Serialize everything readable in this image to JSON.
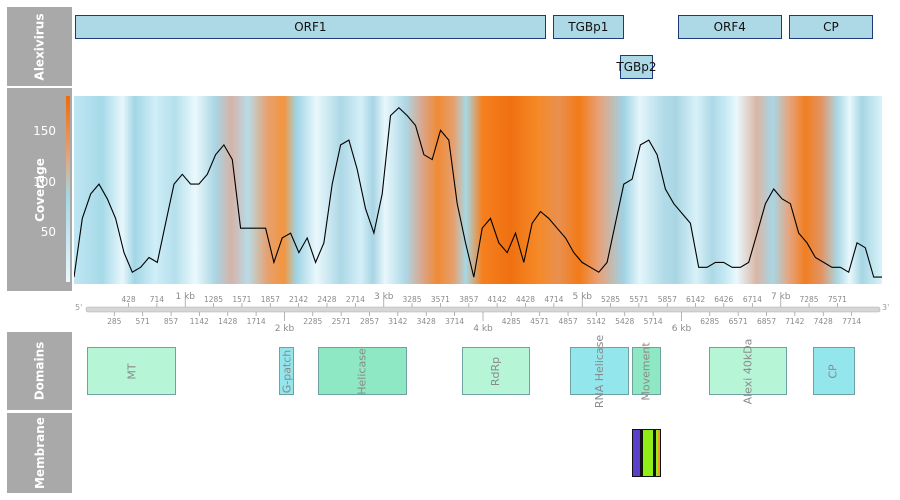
{
  "tracks": {
    "alexivirus_label": "Alexivirus",
    "coverage_label": "Coverage",
    "domains_label": "Domains",
    "membrane_label": "Membrane"
  },
  "genes": [
    {
      "name": "ORF1",
      "start": 10,
      "end": 5665
    },
    {
      "name": "TGBp1",
      "start": 5745,
      "end": 6605
    },
    {
      "name": "TGBp2",
      "start": 6555,
      "end": 6950
    },
    {
      "name": "ORF4",
      "start": 7245,
      "end": 8500
    },
    {
      "name": "CP",
      "start": 8580,
      "end": 9595
    }
  ],
  "coverage": {
    "yticks": [
      "50",
      "100",
      "150"
    ],
    "ymax": 190
  },
  "chart_data": {
    "type": "line",
    "title": "",
    "xlabel": "",
    "ylabel": "Coverage",
    "xlim": [
      0,
      9700
    ],
    "ylim": [
      0,
      190
    ],
    "series": [
      {
        "x": [
          0,
          100,
          200,
          300,
          400,
          500,
          600,
          700,
          800,
          900,
          1000,
          1100,
          1200,
          1300,
          1400,
          1500,
          1600,
          1700,
          1800,
          1900,
          2000,
          2100,
          2200,
          2300,
          2400,
          2500,
          2600,
          2700,
          2800,
          2900,
          3000,
          3100,
          3200,
          3300,
          3400,
          3500,
          3600,
          3700,
          3800,
          3900,
          4000,
          4100,
          4200,
          4300,
          4400,
          4500,
          4600,
          4700,
          4800,
          4900,
          5000,
          5100,
          5200,
          5300,
          5400,
          5500,
          5600,
          5700,
          5800,
          5900,
          6000,
          6100,
          6200,
          6300,
          6400,
          6500,
          6600,
          6700,
          6800,
          6900,
          7000,
          7100,
          7200,
          7300,
          7400,
          7500,
          7600,
          7700,
          7800,
          7900,
          8000,
          8100,
          8200,
          8300,
          8400,
          8500,
          8600,
          8700,
          8800,
          8900,
          9000,
          9100,
          9200,
          9300,
          9400,
          9500,
          9600,
          9700
        ],
        "values": [
          5,
          65,
          90,
          100,
          85,
          65,
          30,
          10,
          15,
          25,
          20,
          60,
          100,
          110,
          100,
          100,
          110,
          130,
          140,
          125,
          55,
          55,
          55,
          55,
          20,
          45,
          50,
          30,
          45,
          20,
          40,
          100,
          140,
          145,
          115,
          75,
          50,
          90,
          170,
          178,
          170,
          160,
          130,
          125,
          155,
          145,
          80,
          40,
          5,
          55,
          65,
          40,
          30,
          50,
          20,
          60,
          72,
          65,
          55,
          45,
          30,
          20,
          15,
          10,
          20,
          60,
          100,
          105,
          140,
          145,
          130,
          95,
          80,
          70,
          60,
          15,
          15,
          20,
          20,
          15,
          15,
          20,
          50,
          80,
          95,
          85,
          80,
          50,
          40,
          25,
          20,
          15,
          15,
          10,
          40,
          35,
          5,
          5
        ]
      }
    ]
  },
  "axis": {
    "five_prime": "5'",
    "three_prime": "3'",
    "top_numbers": [
      428,
      714,
      1285,
      1571,
      1857,
      2142,
      2428,
      2714,
      3285,
      3571,
      3857,
      4142,
      4428,
      4714,
      5285,
      5571,
      5857,
      6142,
      6426,
      6714,
      7285,
      7571
    ],
    "bottom_numbers": [
      285,
      571,
      857,
      1142,
      1428,
      1714,
      2285,
      2571,
      2857,
      3142,
      3428,
      3714,
      4285,
      4571,
      4857,
      5142,
      5428,
      5714,
      6285,
      6571,
      6857,
      7142,
      7428,
      7714
    ],
    "kb_top": [
      {
        "label": "1 kb",
        "pos": 1000
      },
      {
        "label": "3 kb",
        "pos": 3000
      },
      {
        "label": "5 kb",
        "pos": 5000
      },
      {
        "label": "7 kb",
        "pos": 7000
      }
    ],
    "kb_bottom": [
      {
        "label": "2 kb",
        "pos": 2000
      },
      {
        "label": "4 kb",
        "pos": 4000
      },
      {
        "label": "6 kb",
        "pos": 6000
      }
    ]
  },
  "domains": [
    {
      "name": "MT",
      "start": 270,
      "end": 2115,
      "color": "#b7f5d7"
    },
    {
      "name": "G-patch",
      "start": 4240,
      "end": 4540,
      "color": "#93e6ec"
    },
    {
      "name": "Helicase",
      "start": 5040,
      "end": 6885,
      "color": "#8ee8c3"
    },
    {
      "name": "RdRp",
      "start": 8020,
      "end": 9415,
      "color": "#b7f5d7"
    },
    {
      "name": "RNA Helicase",
      "start": 10245,
      "end": 11465,
      "color": "#93e6ec"
    },
    {
      "name": "Movement",
      "start": 11530,
      "end": 12140,
      "color": "#8ee8c3"
    },
    {
      "name": "Alexi 40kDa",
      "start": 13130,
      "end": 14730,
      "color": "#b7f5d7"
    },
    {
      "name": "CP",
      "start": 15265,
      "end": 16135,
      "color": "#93e6ec"
    }
  ],
  "membrane": [
    {
      "start": 11535,
      "end": 11700,
      "color": "#5b3fc8"
    },
    {
      "start": 11700,
      "end": 11760,
      "color": "#111111"
    },
    {
      "start": 11760,
      "end": 11960,
      "color": "#8fee18"
    },
    {
      "start": 11960,
      "end": 12020,
      "color": "#111111"
    },
    {
      "start": 12020,
      "end": 12080,
      "color": "#8fee18"
    },
    {
      "start": 12080,
      "end": 12140,
      "color": "#f0a020"
    }
  ],
  "colors": {
    "track_strip": "#a9a9a9",
    "gene_fill": "#add8e6",
    "gene_border": "#1f3a7a",
    "coverage_low": "#add8e6",
    "coverage_high": "#f07010",
    "axis": "#b0b0b0"
  }
}
